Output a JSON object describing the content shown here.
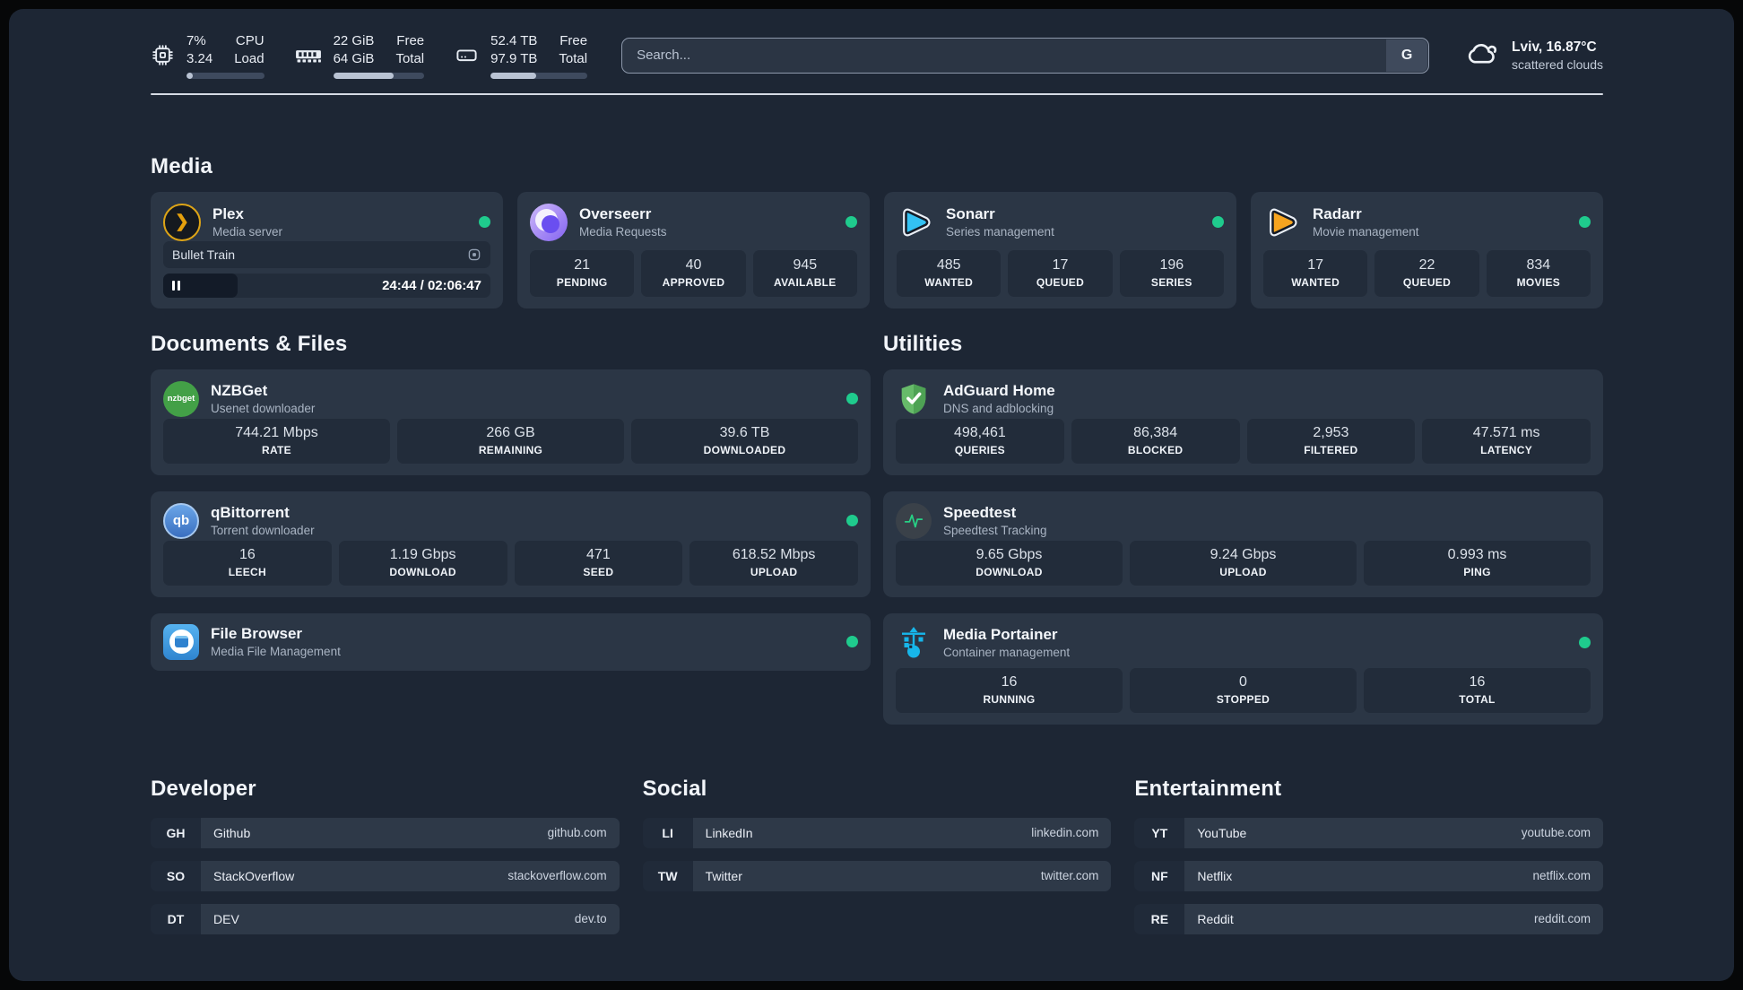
{
  "header": {
    "stats": [
      {
        "icon": "cpu-icon",
        "line1": "7%",
        "line2": "3.24",
        "label1": "CPU",
        "label2": "Load",
        "progress": 8
      },
      {
        "icon": "memory-icon",
        "line1": "22 GiB",
        "line2": "64 GiB",
        "label1": "Free",
        "label2": "Total",
        "progress": 66
      },
      {
        "icon": "disk-icon",
        "line1": "52.4 TB",
        "line2": "97.9 TB",
        "label1": "Free",
        "label2": "Total",
        "progress": 47
      }
    ],
    "search": {
      "placeholder": "Search...",
      "button_label": "G"
    },
    "weather": {
      "location": "Lviv, 16.87°C",
      "condition": "scattered clouds"
    }
  },
  "media": {
    "title": "Media",
    "plex": {
      "name": "Plex",
      "desc": "Media server",
      "now_playing": "Bullet Train",
      "time": "24:44 / 02:06:47",
      "progress": 20
    },
    "overseerr": {
      "name": "Overseerr",
      "desc": "Media Requests",
      "stats": [
        {
          "value": "21",
          "label": "PENDING"
        },
        {
          "value": "40",
          "label": "APPROVED"
        },
        {
          "value": "945",
          "label": "AVAILABLE"
        }
      ]
    },
    "sonarr": {
      "name": "Sonarr",
      "desc": "Series management",
      "stats": [
        {
          "value": "485",
          "label": "WANTED"
        },
        {
          "value": "17",
          "label": "QUEUED"
        },
        {
          "value": "196",
          "label": "SERIES"
        }
      ]
    },
    "radarr": {
      "name": "Radarr",
      "desc": "Movie management",
      "stats": [
        {
          "value": "17",
          "label": "WANTED"
        },
        {
          "value": "22",
          "label": "QUEUED"
        },
        {
          "value": "834",
          "label": "MOVIES"
        }
      ]
    }
  },
  "documents": {
    "title": "Documents & Files",
    "nzbget": {
      "name": "NZBGet",
      "desc": "Usenet downloader",
      "icon_text": "nzbget",
      "stats": [
        {
          "value": "744.21 Mbps",
          "label": "RATE"
        },
        {
          "value": "266 GB",
          "label": "REMAINING"
        },
        {
          "value": "39.6 TB",
          "label": "DOWNLOADED"
        }
      ]
    },
    "qbittorrent": {
      "name": "qBittorrent",
      "desc": "Torrent downloader",
      "icon_text": "qb",
      "stats": [
        {
          "value": "16",
          "label": "LEECH"
        },
        {
          "value": "1.19 Gbps",
          "label": "DOWNLOAD"
        },
        {
          "value": "471",
          "label": "SEED"
        },
        {
          "value": "618.52 Mbps",
          "label": "UPLOAD"
        }
      ]
    },
    "filebrowser": {
      "name": "File Browser",
      "desc": "Media File Management"
    }
  },
  "utilities": {
    "title": "Utilities",
    "adguard": {
      "name": "AdGuard Home",
      "desc": "DNS and adblocking",
      "stats": [
        {
          "value": "498,461",
          "label": "QUERIES"
        },
        {
          "value": "86,384",
          "label": "BLOCKED"
        },
        {
          "value": "2,953",
          "label": "FILTERED"
        },
        {
          "value": "47.571 ms",
          "label": "LATENCY"
        }
      ]
    },
    "speedtest": {
      "name": "Speedtest",
      "desc": "Speedtest Tracking",
      "stats": [
        {
          "value": "9.65 Gbps",
          "label": "DOWNLOAD"
        },
        {
          "value": "9.24 Gbps",
          "label": "UPLOAD"
        },
        {
          "value": "0.993 ms",
          "label": "PING"
        }
      ]
    },
    "portainer": {
      "name": "Media Portainer",
      "desc": "Container management",
      "stats": [
        {
          "value": "16",
          "label": "RUNNING"
        },
        {
          "value": "0",
          "label": "STOPPED"
        },
        {
          "value": "16",
          "label": "TOTAL"
        }
      ]
    }
  },
  "links": {
    "developer": {
      "title": "Developer",
      "items": [
        {
          "tag": "GH",
          "name": "Github",
          "url": "github.com"
        },
        {
          "tag": "SO",
          "name": "StackOverflow",
          "url": "stackoverflow.com"
        },
        {
          "tag": "DT",
          "name": "DEV",
          "url": "dev.to"
        }
      ]
    },
    "social": {
      "title": "Social",
      "items": [
        {
          "tag": "LI",
          "name": "LinkedIn",
          "url": "linkedin.com"
        },
        {
          "tag": "TW",
          "name": "Twitter",
          "url": "twitter.com"
        }
      ]
    },
    "entertainment": {
      "title": "Entertainment",
      "items": [
        {
          "tag": "YT",
          "name": "YouTube",
          "url": "youtube.com"
        },
        {
          "tag": "NF",
          "name": "Netflix",
          "url": "netflix.com"
        },
        {
          "tag": "RE",
          "name": "Reddit",
          "url": "reddit.com"
        }
      ]
    }
  },
  "colors": {
    "status_online": "#1fcb8d",
    "plex_accent": "#e5a00d",
    "background": "#1d2634",
    "card": "#2b3645"
  }
}
